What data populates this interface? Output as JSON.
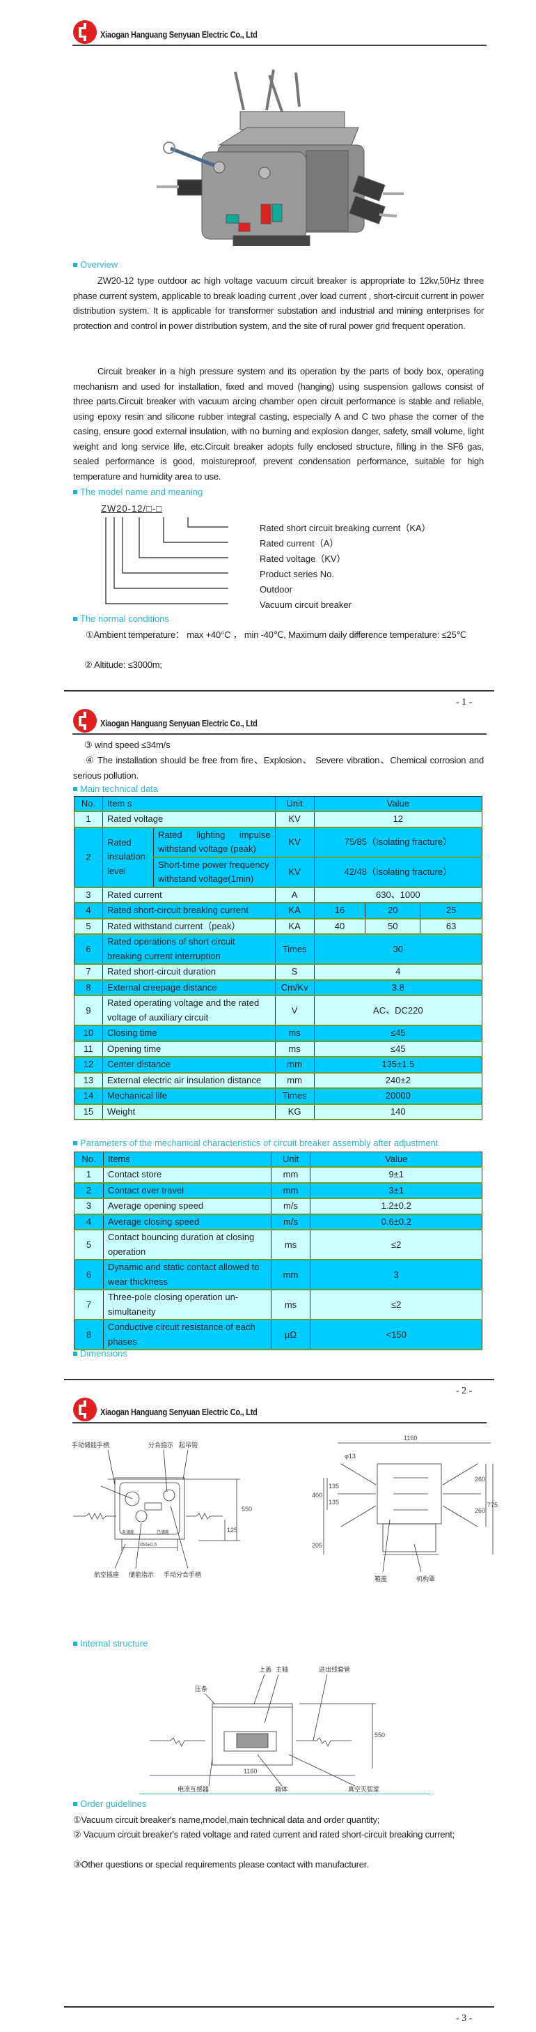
{
  "company": "Xiaogan Hanguang Senyuan Electric Co., Ltd",
  "colors": {
    "header_cyan": "#00ccff",
    "row_light": "#ccffff",
    "heading": "#2fb5d8",
    "logo_red": "#e02020"
  },
  "page_numbers": [
    "- 1 -",
    "- 2 -",
    "- 3 -"
  ],
  "overview": {
    "heading": "Overview",
    "p1": "ZW20-12 type outdoor ac high voltage vacuum circuit breaker is appropriate to 12kv,50Hz three phase current system, applicable to break loading current ,over load current , short-circuit current in power distribution system. It is applicable for transformer substation and industrial and mining enterprises for protection and control in power distribution system, and the site of rural power grid frequent operation.",
    "p2": "Circuit breaker in a high pressure system and its operation by the parts of body box, operating mechanism  and used for installation, fixed and moved (hanging) using suspension gallows consist of three parts.Circuit breaker with vacuum arcing chamber open circuit performance is stable and reliable, using epoxy resin and silicone rubber integral casting, especially A and C two phase the corner of the casing, ensure good external insulation, with no burning and explosion danger, safety, small volume, light weight and long service life, etc.Circuit breaker adopts fully enclosed structure, filling in the SF6 gas, sealed performance is good, moistureproof, prevent condensation performance, suitable for high temperature and humidity area to use."
  },
  "model": {
    "heading": "The model name and meaning",
    "code": "ZW20-12/□-□",
    "parts": [
      "Z",
      "W",
      "20",
      "12",
      "□",
      "□"
    ],
    "meanings": [
      "Rated short circuit breaking current（KA）",
      "Rated current（A）",
      "Rated voltage（KV）",
      "Product series No.",
      "Outdoor",
      "Vacuum circuit breaker"
    ]
  },
  "conditions": {
    "heading": "The normal conditions",
    "items": [
      "①Ambient temperature：  max +40°C ， min -40℃, Maximum daily difference temperature: ≤25℃",
      "②  Altitude: ≤3000m;",
      "③  wind speed ≤34m/s",
      "④  The installation should be free from fire、Explosion、 Severe vibration、Chemical corrosion and serious pollution."
    ]
  },
  "main_table": {
    "heading": "Main technical data",
    "columns": [
      "No.",
      "Item s",
      "Unit",
      "Value"
    ],
    "row2": {
      "no": "2",
      "group": "Rated insulation level",
      "sub": [
        {
          "item": "Rated lighting impulse withstand voltage (peak)",
          "unit": "KV",
          "value": "75/85（Isolating fracture）"
        },
        {
          "item": "Short-time power frequency withstand voltage(1min)",
          "unit": "KV",
          "value": "42/48（Isolating fracture）"
        }
      ]
    },
    "rows": [
      {
        "no": "1",
        "item": "Rated voltage",
        "unit": "KV",
        "value": "12"
      },
      {
        "no": "3",
        "item": "Rated current",
        "unit": "A",
        "value": "630、1000"
      },
      {
        "no": "4",
        "item": "Rated short-circuit breaking current",
        "unit": "KA",
        "values": [
          "16",
          "20",
          "25"
        ]
      },
      {
        "no": "5",
        "item": "Rated withstand current（peak）",
        "unit": "KA",
        "values": [
          "40",
          "50",
          "63"
        ]
      },
      {
        "no": "6",
        "item": "Rated operations of short circuit breaking current interruption",
        "unit": "Times",
        "value": "30"
      },
      {
        "no": "7",
        "item": "Rated short-circuit duration",
        "unit": "S",
        "value": "4"
      },
      {
        "no": "8",
        "item": "External creepage distance",
        "unit": "Cm/Kv",
        "value": "3.8"
      },
      {
        "no": "9",
        "item": "Rated operating voltage and the rated voltage of auxiliary circuit",
        "unit": "V",
        "value": "AC、DC220"
      },
      {
        "no": "10",
        "item": "Closing time",
        "unit": "ms",
        "value": "≤45"
      },
      {
        "no": "11",
        "item": "Opening time",
        "unit": "ms",
        "value": "≤45"
      },
      {
        "no": "12",
        "item": "Center distance",
        "unit": "mm",
        "value": "135±1.5"
      },
      {
        "no": "13",
        "item": "External electric air insulation distance",
        "unit": "mm",
        "value": "240±2"
      },
      {
        "no": "14",
        "item": "Mechanical life",
        "unit": "Times",
        "value": "20000"
      },
      {
        "no": "15",
        "item": "Weight",
        "unit": "KG",
        "value": "140"
      }
    ]
  },
  "mech_table": {
    "heading": "Parameters of the mechanical characteristics of circuit breaker assembly after adjustment",
    "columns": [
      "No.",
      "Items",
      "Unit",
      "Value"
    ],
    "rows": [
      {
        "no": "1",
        "item": "Contact store",
        "unit": "mm",
        "value": "9±1"
      },
      {
        "no": "2",
        "item": "Contact over travel",
        "unit": "mm",
        "value": "3±1"
      },
      {
        "no": "3",
        "item": "Average opening speed",
        "unit": "m/s",
        "value": "1.2±0.2"
      },
      {
        "no": "4",
        "item": "Average closing speed",
        "unit": "m/s",
        "value": "0.6±0.2"
      },
      {
        "no": "5",
        "item": "Contact bouncing duration at closing operation",
        "unit": "ms",
        "value": "≤2"
      },
      {
        "no": "6",
        "item": "Dynamic and static contact allowed to wear thickness",
        "unit": "mm",
        "value": "3"
      },
      {
        "no": "7",
        "item": "Three-pole closing operation un-simultaneity",
        "unit": "ms",
        "value": "≤2"
      },
      {
        "no": "8",
        "item": "Conductive circuit resistance of each phases",
        "unit": "μΩ",
        "value": "<150"
      }
    ]
  },
  "dimensions": {
    "heading": "Dimensions",
    "front": {
      "labels": [
        "手动储能手柄",
        "分合指示",
        "起吊钩",
        "航空插座",
        "储能指示",
        "手动分合手柄",
        "未储能",
        "已储能"
      ],
      "dims": [
        "550",
        "125",
        "350±0.5"
      ]
    },
    "top": {
      "labels": [
        "箱盖",
        "机构罩"
      ],
      "dims": [
        "1160",
        "φ13",
        "135",
        "135",
        "400",
        "260",
        "260",
        "775",
        "205"
      ]
    }
  },
  "internal": {
    "heading": "Internal structure",
    "labels": [
      "上盖",
      "主轴",
      "进出线套管",
      "压条",
      "电流互感器",
      "箱体",
      "真空灭弧室"
    ],
    "dims": [
      "550",
      "1160"
    ]
  },
  "order": {
    "heading": "Order guidelines",
    "items": [
      "①Vacuum circuit breaker's name,model,main technical data and order quantity;",
      "②    Vacuum circuit breaker's rated voltage and rated current and rated short-circuit breaking current;",
      "③Other questions or special requirements please contact with manufacturer."
    ]
  }
}
